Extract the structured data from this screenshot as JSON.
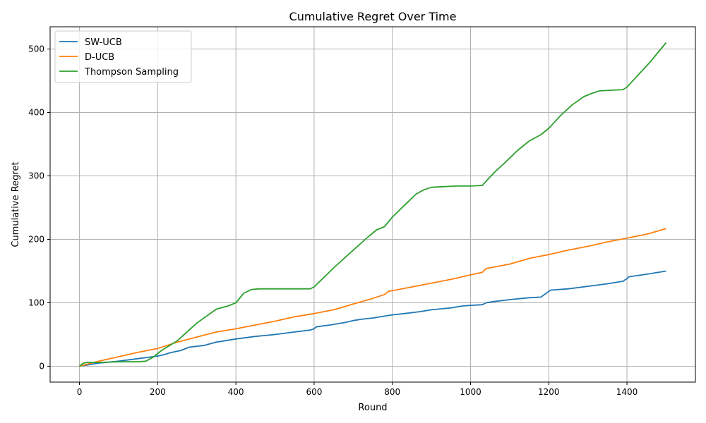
{
  "chart_data": {
    "type": "line",
    "title": "Cumulative Regret Over Time",
    "xlabel": "Round",
    "ylabel": "Cumulative Regret",
    "xlim": [
      -75,
      1575
    ],
    "ylim": [
      -25,
      535
    ],
    "xticks": [
      0,
      200,
      400,
      600,
      800,
      1000,
      1200,
      1400
    ],
    "yticks": [
      0,
      100,
      200,
      300,
      400,
      500
    ],
    "grid": true,
    "legend_position": "top-left",
    "series": [
      {
        "name": "SW-UCB",
        "color": "#1f77b4",
        "x": [
          0,
          50,
          100,
          150,
          200,
          215,
          230,
          260,
          280,
          320,
          350,
          400,
          450,
          500,
          550,
          590,
          600,
          605,
          640,
          680,
          700,
          720,
          750,
          780,
          800,
          830,
          870,
          900,
          950,
          980,
          1000,
          1030,
          1040,
          1060,
          1100,
          1150,
          1180,
          1200,
          1205,
          1250,
          1300,
          1350,
          1390,
          1400,
          1405,
          1450,
          1500
        ],
        "y": [
          0,
          5,
          8,
          12,
          16,
          18,
          21,
          25,
          30,
          33,
          38,
          43,
          47,
          50,
          54,
          57,
          59,
          62,
          65,
          69,
          72,
          74,
          76,
          79,
          81,
          83,
          86,
          89,
          92,
          95,
          96,
          97,
          100,
          102,
          105,
          108,
          109,
          118,
          120,
          122,
          126,
          130,
          134,
          138,
          141,
          145,
          150
        ]
      },
      {
        "name": "D-UCB",
        "color": "#ff7f0e",
        "x": [
          0,
          50,
          100,
          150,
          200,
          250,
          300,
          350,
          400,
          450,
          500,
          550,
          600,
          650,
          700,
          750,
          780,
          790,
          800,
          850,
          900,
          950,
          1000,
          1030,
          1040,
          1100,
          1150,
          1200,
          1250,
          1300,
          1350,
          1400,
          1450,
          1500
        ],
        "y": [
          0,
          8,
          15,
          22,
          28,
          38,
          46,
          54,
          59,
          65,
          71,
          78,
          83,
          89,
          98,
          107,
          113,
          118,
          119,
          125,
          131,
          137,
          144,
          148,
          154,
          161,
          170,
          176,
          183,
          189,
          196,
          202,
          208,
          217
        ]
      },
      {
        "name": "Thompson Sampling",
        "color": "#2ca02c",
        "x": [
          0,
          10,
          20,
          50,
          100,
          150,
          170,
          190,
          210,
          250,
          300,
          350,
          380,
          400,
          420,
          440,
          460,
          500,
          550,
          590,
          600,
          650,
          700,
          740,
          760,
          780,
          800,
          830,
          860,
          880,
          900,
          930,
          960,
          1000,
          1030,
          1060,
          1090,
          1120,
          1150,
          1180,
          1200,
          1230,
          1260,
          1290,
          1310,
          1330,
          1360,
          1390,
          1400,
          1430,
          1460,
          1480,
          1500
        ],
        "y": [
          0,
          5,
          6,
          6,
          7,
          7,
          8,
          15,
          25,
          40,
          68,
          90,
          95,
          100,
          115,
          121,
          122,
          122,
          122,
          122,
          125,
          155,
          183,
          205,
          215,
          220,
          235,
          253,
          271,
          278,
          282,
          283,
          284,
          284,
          285,
          305,
          322,
          340,
          355,
          365,
          375,
          395,
          412,
          425,
          430,
          434,
          435,
          436,
          440,
          460,
          480,
          495,
          510
        ]
      }
    ]
  }
}
